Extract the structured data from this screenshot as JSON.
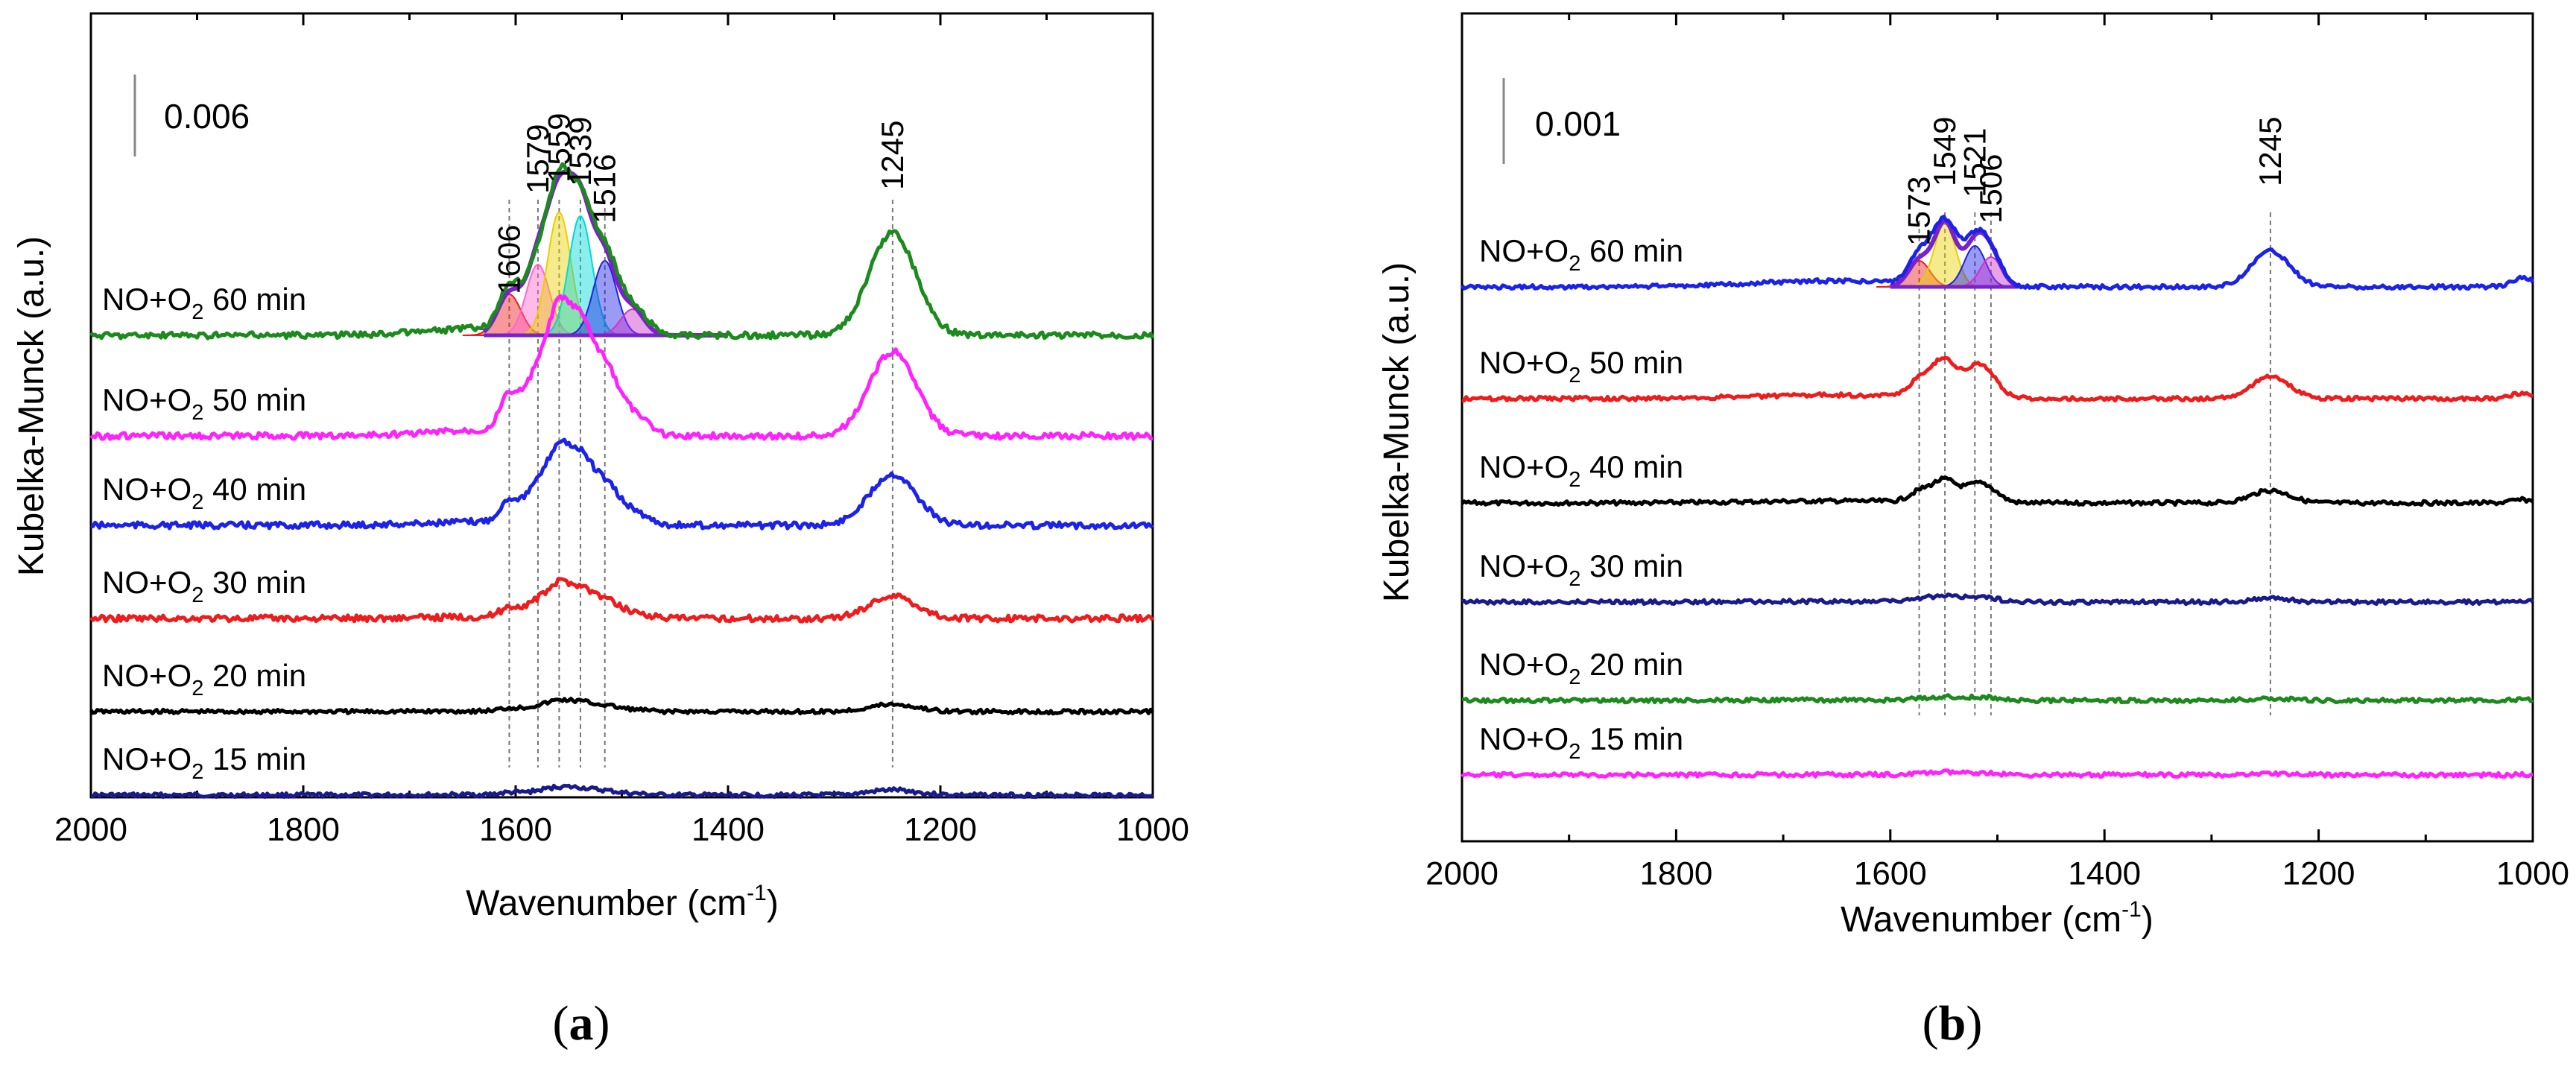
{
  "chart_data": [
    {
      "type": "line",
      "panel": "(a)",
      "panel_letter": "a",
      "xlabel_main": "Wavenumber (cm",
      "xlabel_sup": "-1",
      "xlabel_close": ")",
      "ylabel": "Kubelka-Munck (a.u.)",
      "xlim": [
        2000,
        1000
      ],
      "x_ticks": [
        "2000",
        "1800",
        "1600",
        "1400",
        "1200",
        "1000"
      ],
      "x_tick_values": [
        2000,
        1800,
        1600,
        1400,
        1200,
        1000
      ],
      "scale_bar_label": "0.006",
      "peak_labels": [
        {
          "text": "1606",
          "value": 1606
        },
        {
          "text": "1579",
          "value": 1579
        },
        {
          "text": "1559",
          "value": 1559
        },
        {
          "text": "1539",
          "value": 1539
        },
        {
          "text": "1516",
          "value": 1516
        },
        {
          "text": "1245",
          "value": 1245
        }
      ],
      "series": [
        {
          "prefix": "NO+O",
          "sub": "2",
          "suffix": " 15 min",
          "color": "#1a1a8c",
          "offset": 0.0,
          "scale": 0.05,
          "noise": 0.002
        },
        {
          "prefix": "NO+O",
          "sub": "2",
          "suffix": " 20 min",
          "color": "#000000",
          "offset": 0.0095,
          "scale": 0.07,
          "noise": 0.003
        },
        {
          "prefix": "NO+O",
          "sub": "2",
          "suffix": " 30 min",
          "color": "#ee1c1c",
          "offset": 0.02,
          "scale": 0.22,
          "noise": 0.004
        },
        {
          "prefix": "NO+O",
          "sub": "2",
          "suffix": " 40 min",
          "color": "#1c22e8",
          "offset": 0.0305,
          "scale": 0.5,
          "noise": 0.005
        },
        {
          "prefix": "NO+O",
          "sub": "2",
          "suffix": " 50 min",
          "color": "#ff22ff",
          "offset": 0.0415,
          "scale": 0.82,
          "noise": 0.006
        },
        {
          "prefix": "NO+O",
          "sub": "2",
          "suffix": " 60 min",
          "color": "#1c8a1c",
          "offset": 0.0525,
          "scale": 1.0,
          "noise": 0.004
        }
      ],
      "fit_peaks": [
        {
          "center": 1606,
          "color": "#ee1c1c"
        },
        {
          "center": 1579,
          "color": "#ff66cc"
        },
        {
          "center": 1559,
          "color": "#e8d000"
        },
        {
          "center": 1539,
          "color": "#00d8d8"
        },
        {
          "center": 1516,
          "color": "#1c22e8"
        },
        {
          "center": 1490,
          "color": "#cc33cc"
        }
      ]
    },
    {
      "type": "line",
      "panel": "(b)",
      "panel_letter": "b",
      "xlabel_main": "Wavenumber (cm",
      "xlabel_sup": "-1",
      "xlabel_close": ")",
      "ylabel": "Kubelka-Munck (a.u.)",
      "xlim": [
        2000,
        1000
      ],
      "x_ticks": [
        "2000",
        "1800",
        "1600",
        "1400",
        "1200",
        "1000"
      ],
      "x_tick_values": [
        2000,
        1800,
        1600,
        1400,
        1200,
        1000
      ],
      "scale_bar_label": "0.001",
      "peak_labels": [
        {
          "text": "1573",
          "value": 1573
        },
        {
          "text": "1549",
          "value": 1549
        },
        {
          "text": "1521",
          "value": 1521
        },
        {
          "text": "1506",
          "value": 1506
        },
        {
          "text": "1245",
          "value": 1245
        }
      ],
      "series": [
        {
          "prefix": "NO+O",
          "sub": "2",
          "suffix": " 15 min",
          "color": "#ff22ff",
          "offset": 0.0,
          "scale": 0.04,
          "noise": 0.0008
        },
        {
          "prefix": "NO+O",
          "sub": "2",
          "suffix": " 20 min",
          "color": "#1c8a1c",
          "offset": 0.0011,
          "scale": 0.06,
          "noise": 0.001
        },
        {
          "prefix": "NO+O",
          "sub": "2",
          "suffix": " 30 min",
          "color": "#1a1a8c",
          "offset": 0.0025,
          "scale": 0.1,
          "noise": 0.001
        },
        {
          "prefix": "NO+O",
          "sub": "2",
          "suffix": " 40 min",
          "color": "#000000",
          "offset": 0.0037,
          "scale": 0.35,
          "noise": 0.0012
        },
        {
          "prefix": "NO+O",
          "sub": "2",
          "suffix": " 50 min",
          "color": "#ee1c1c",
          "offset": 0.005,
          "scale": 0.6,
          "noise": 0.0014
        },
        {
          "prefix": "NO+O",
          "sub": "2",
          "suffix": " 60 min",
          "color": "#1c22e8",
          "offset": 0.0064,
          "scale": 1.0,
          "noise": 0.0012
        }
      ],
      "fit_peaks": [
        {
          "center": 1573,
          "color": "#ee1c1c"
        },
        {
          "center": 1549,
          "color": "#e8d000"
        },
        {
          "center": 1521,
          "color": "#1c22e8"
        },
        {
          "center": 1506,
          "color": "#cc33cc"
        }
      ]
    }
  ]
}
